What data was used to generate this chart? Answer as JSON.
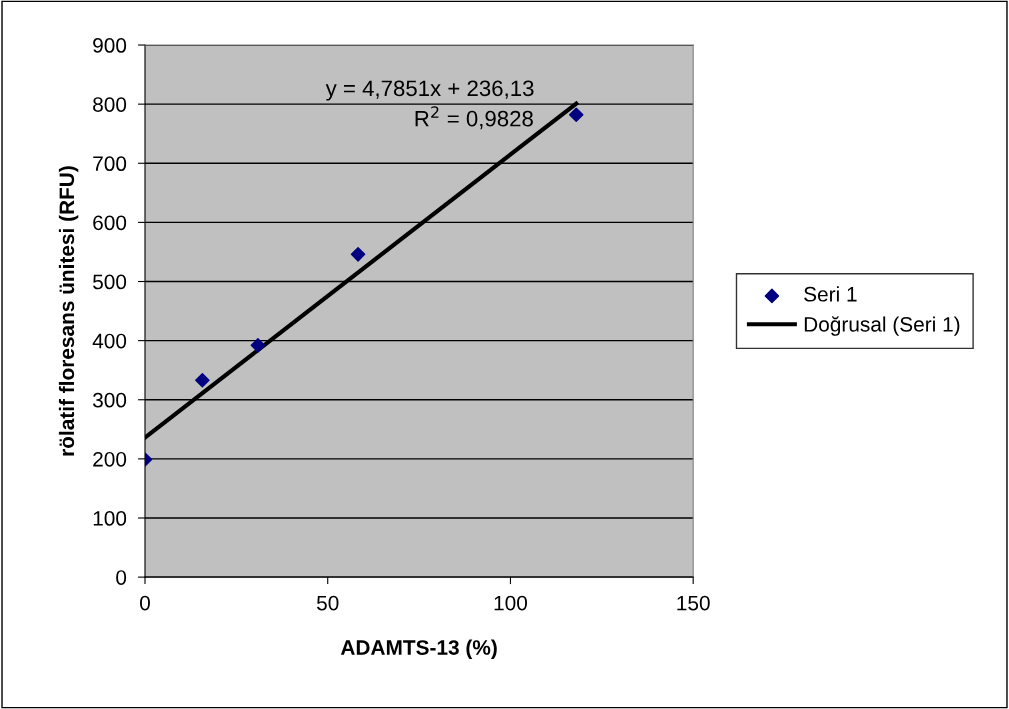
{
  "chart_data": {
    "type": "scatter",
    "xlabel": "ADAMTS-13 (%)",
    "ylabel": "rölatif floresans ünitesi (RFU)",
    "series": [
      {
        "name": "Seri 1",
        "color": "#000080",
        "marker": "diamond",
        "x": [
          0,
          15.7,
          30.9,
          58.3,
          118
        ],
        "values": [
          199,
          333,
          392,
          546,
          782
        ]
      },
      {
        "name": "Doğrusal (Seri 1)",
        "type": "line",
        "color": "#000000",
        "line_style": "solid",
        "marker": "none",
        "x": [
          0,
          118
        ],
        "values": [
          236,
          801
        ]
      }
    ],
    "annotations": [
      "y = 4,7851x + 236,13",
      "R$^{2}$ = 0,9828"
    ],
    "xlim": [
      0,
      150
    ],
    "xticks": [
      0,
      50,
      100,
      150
    ],
    "ylim": [
      0,
      900
    ],
    "yticks": [
      0,
      100,
      200,
      300,
      400,
      500,
      600,
      700,
      800,
      900
    ],
    "grid": "y",
    "legend": "right"
  }
}
